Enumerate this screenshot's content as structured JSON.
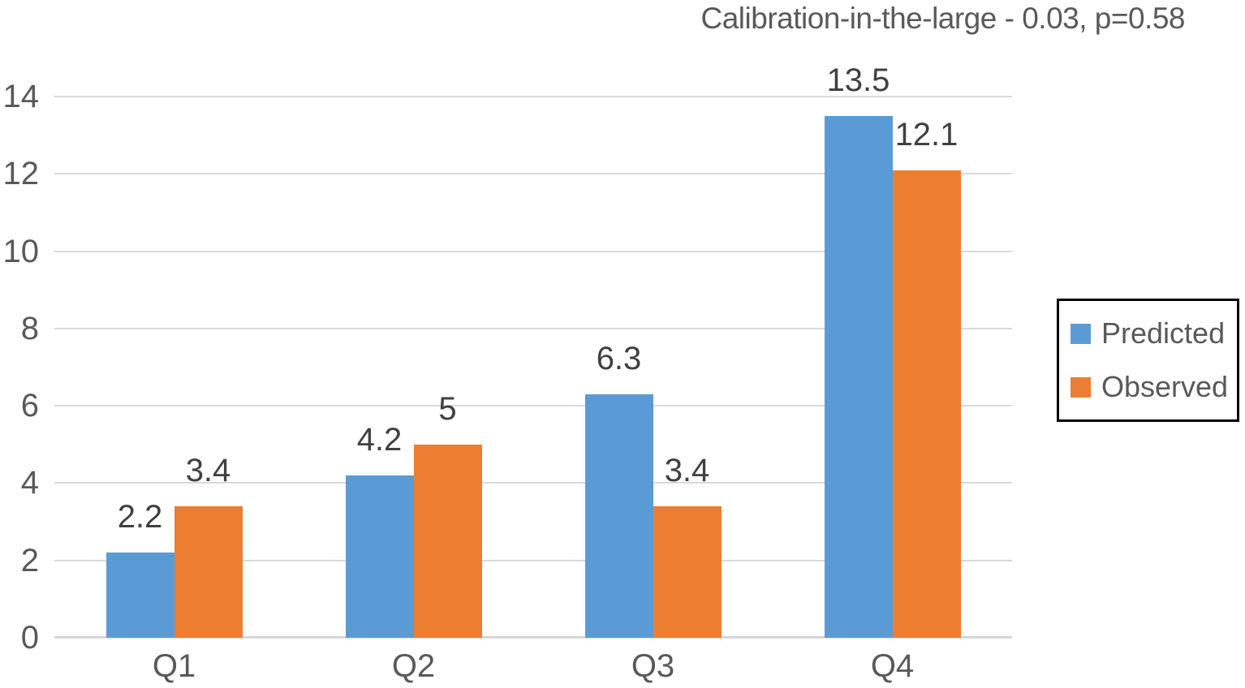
{
  "title": "Calibration-in-the-large - 0.03, p=0.58",
  "chart_data": {
    "type": "bar",
    "title": "Calibration-in-the-large - 0.03, p=0.58",
    "categories": [
      "Q1",
      "Q2",
      "Q3",
      "Q4"
    ],
    "series": [
      {
        "name": "Predicted",
        "color": "#5B9BD5",
        "values": [
          2.2,
          4.2,
          6.3,
          13.5
        ]
      },
      {
        "name": "Observed",
        "color": "#ED7D31",
        "values": [
          3.4,
          5,
          3.4,
          12.1
        ]
      }
    ],
    "xlabel": "",
    "ylabel": "",
    "ylim": [
      0,
      14
    ],
    "y_ticks": [
      0,
      2,
      4,
      6,
      8,
      10,
      12,
      14
    ],
    "grid": true,
    "value_labels": true,
    "legend_position": "right"
  },
  "colors": {
    "predicted": "#5B9BD5",
    "observed": "#ED7D31",
    "grid_line": "#d9d9d9",
    "axis_line": "#d6d6d6",
    "tick_text": "#595959",
    "value_text": "#404040",
    "title_text": "#595959",
    "legend_border": "#000000",
    "background": "#ffffff"
  }
}
